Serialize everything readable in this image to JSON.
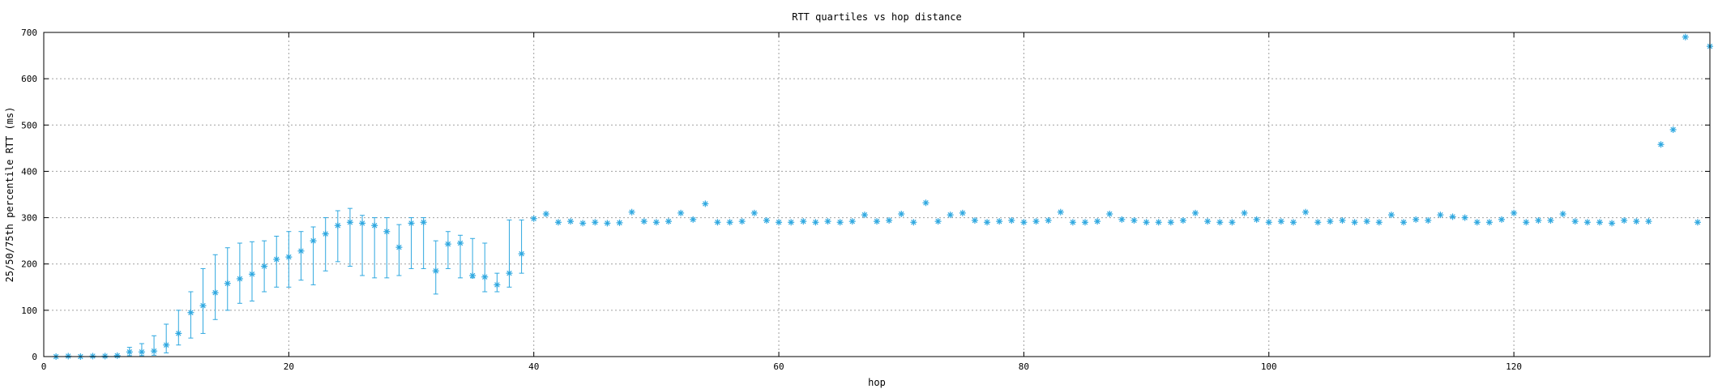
{
  "chart_data": {
    "type": "scatter",
    "title": "RTT quartiles vs hop distance",
    "xlabel": "hop",
    "ylabel": "25/50/75th percentile RTT (ms)",
    "xlim": [
      0,
      136
    ],
    "ylim": [
      0,
      700
    ],
    "x_ticks": [
      0,
      20,
      40,
      60,
      80,
      100,
      120
    ],
    "y_ticks": [
      0,
      100,
      200,
      300,
      400,
      500,
      600,
      700
    ],
    "grid": true,
    "legend": "none",
    "marker": "asterisk",
    "color": "#2fa8e0",
    "series": [
      {
        "points": [
          {
            "x": 1,
            "y": 0
          },
          {
            "x": 2,
            "y": 1
          },
          {
            "x": 3,
            "y": 0
          },
          {
            "x": 4,
            "y": 1
          },
          {
            "x": 5,
            "y": 1
          },
          {
            "x": 6,
            "y": 2
          },
          {
            "x": 7,
            "y": 10,
            "low": 2,
            "high": 20
          },
          {
            "x": 8,
            "y": 10,
            "low": 2,
            "high": 28
          },
          {
            "x": 9,
            "y": 12,
            "low": 3,
            "high": 45
          },
          {
            "x": 10,
            "y": 25,
            "low": 8,
            "high": 70
          },
          {
            "x": 11,
            "y": 50,
            "low": 25,
            "high": 100
          },
          {
            "x": 12,
            "y": 95,
            "low": 40,
            "high": 140
          },
          {
            "x": 13,
            "y": 110,
            "low": 50,
            "high": 190
          },
          {
            "x": 14,
            "y": 138,
            "low": 80,
            "high": 220
          },
          {
            "x": 15,
            "y": 158,
            "low": 100,
            "high": 235
          },
          {
            "x": 16,
            "y": 168,
            "low": 115,
            "high": 245
          },
          {
            "x": 17,
            "y": 178,
            "low": 120,
            "high": 248
          },
          {
            "x": 18,
            "y": 195,
            "low": 140,
            "high": 250
          },
          {
            "x": 19,
            "y": 210,
            "low": 150,
            "high": 260
          },
          {
            "x": 20,
            "y": 215,
            "low": 150,
            "high": 270
          },
          {
            "x": 21,
            "y": 228,
            "low": 165,
            "high": 270
          },
          {
            "x": 22,
            "y": 250,
            "low": 155,
            "high": 280
          },
          {
            "x": 23,
            "y": 265,
            "low": 185,
            "high": 300
          },
          {
            "x": 24,
            "y": 283,
            "low": 205,
            "high": 315
          },
          {
            "x": 25,
            "y": 290,
            "low": 195,
            "high": 320
          },
          {
            "x": 26,
            "y": 288,
            "low": 175,
            "high": 305
          },
          {
            "x": 27,
            "y": 283,
            "low": 170,
            "high": 300
          },
          {
            "x": 28,
            "y": 270,
            "low": 170,
            "high": 300
          },
          {
            "x": 29,
            "y": 236,
            "low": 175,
            "high": 285
          },
          {
            "x": 30,
            "y": 288,
            "low": 190,
            "high": 300
          },
          {
            "x": 31,
            "y": 290,
            "low": 190,
            "high": 300
          },
          {
            "x": 32,
            "y": 185,
            "low": 135,
            "high": 250
          },
          {
            "x": 33,
            "y": 243,
            "low": 190,
            "high": 270
          },
          {
            "x": 34,
            "y": 245,
            "low": 170,
            "high": 262
          },
          {
            "x": 35,
            "y": 175,
            "low": 170,
            "high": 255
          },
          {
            "x": 36,
            "y": 172,
            "low": 140,
            "high": 245
          },
          {
            "x": 37,
            "y": 155,
            "low": 140,
            "high": 180
          },
          {
            "x": 38,
            "y": 180,
            "low": 150,
            "high": 295
          },
          {
            "x": 39,
            "y": 222,
            "low": 180,
            "high": 295
          },
          {
            "x": 40,
            "y": 298
          },
          {
            "x": 41,
            "y": 308
          },
          {
            "x": 42,
            "y": 290
          },
          {
            "x": 43,
            "y": 292
          },
          {
            "x": 44,
            "y": 288
          },
          {
            "x": 45,
            "y": 290
          },
          {
            "x": 46,
            "y": 288
          },
          {
            "x": 47,
            "y": 289
          },
          {
            "x": 48,
            "y": 312
          },
          {
            "x": 49,
            "y": 292
          },
          {
            "x": 50,
            "y": 290
          },
          {
            "x": 51,
            "y": 292
          },
          {
            "x": 52,
            "y": 310
          },
          {
            "x": 53,
            "y": 296
          },
          {
            "x": 54,
            "y": 330
          },
          {
            "x": 55,
            "y": 290
          },
          {
            "x": 56,
            "y": 290
          },
          {
            "x": 57,
            "y": 292
          },
          {
            "x": 58,
            "y": 310
          },
          {
            "x": 59,
            "y": 294
          },
          {
            "x": 60,
            "y": 290
          },
          {
            "x": 61,
            "y": 290
          },
          {
            "x": 62,
            "y": 292
          },
          {
            "x": 63,
            "y": 290
          },
          {
            "x": 64,
            "y": 292
          },
          {
            "x": 65,
            "y": 290
          },
          {
            "x": 66,
            "y": 292
          },
          {
            "x": 67,
            "y": 306
          },
          {
            "x": 68,
            "y": 292
          },
          {
            "x": 69,
            "y": 294
          },
          {
            "x": 70,
            "y": 308
          },
          {
            "x": 71,
            "y": 290
          },
          {
            "x": 72,
            "y": 332
          },
          {
            "x": 73,
            "y": 292
          },
          {
            "x": 74,
            "y": 306
          },
          {
            "x": 75,
            "y": 310
          },
          {
            "x": 76,
            "y": 294
          },
          {
            "x": 77,
            "y": 290
          },
          {
            "x": 78,
            "y": 292
          },
          {
            "x": 79,
            "y": 294
          },
          {
            "x": 80,
            "y": 290
          },
          {
            "x": 81,
            "y": 292
          },
          {
            "x": 82,
            "y": 294
          },
          {
            "x": 83,
            "y": 312
          },
          {
            "x": 84,
            "y": 290
          },
          {
            "x": 85,
            "y": 290
          },
          {
            "x": 86,
            "y": 292
          },
          {
            "x": 87,
            "y": 308
          },
          {
            "x": 88,
            "y": 296
          },
          {
            "x": 89,
            "y": 294
          },
          {
            "x": 90,
            "y": 290
          },
          {
            "x": 91,
            "y": 290
          },
          {
            "x": 92,
            "y": 290
          },
          {
            "x": 93,
            "y": 294
          },
          {
            "x": 94,
            "y": 310
          },
          {
            "x": 95,
            "y": 292
          },
          {
            "x": 96,
            "y": 290
          },
          {
            "x": 97,
            "y": 290
          },
          {
            "x": 98,
            "y": 310
          },
          {
            "x": 99,
            "y": 296
          },
          {
            "x": 100,
            "y": 290
          },
          {
            "x": 101,
            "y": 292
          },
          {
            "x": 102,
            "y": 290
          },
          {
            "x": 103,
            "y": 312
          },
          {
            "x": 104,
            "y": 290
          },
          {
            "x": 105,
            "y": 292
          },
          {
            "x": 106,
            "y": 294
          },
          {
            "x": 107,
            "y": 290
          },
          {
            "x": 108,
            "y": 292
          },
          {
            "x": 109,
            "y": 290
          },
          {
            "x": 110,
            "y": 306
          },
          {
            "x": 111,
            "y": 290
          },
          {
            "x": 112,
            "y": 296
          },
          {
            "x": 113,
            "y": 294
          },
          {
            "x": 114,
            "y": 306
          },
          {
            "x": 115,
            "y": 302
          },
          {
            "x": 116,
            "y": 300
          },
          {
            "x": 117,
            "y": 290
          },
          {
            "x": 118,
            "y": 290
          },
          {
            "x": 119,
            "y": 296
          },
          {
            "x": 120,
            "y": 310
          },
          {
            "x": 121,
            "y": 290
          },
          {
            "x": 122,
            "y": 294
          },
          {
            "x": 123,
            "y": 294
          },
          {
            "x": 124,
            "y": 308
          },
          {
            "x": 125,
            "y": 292
          },
          {
            "x": 126,
            "y": 290
          },
          {
            "x": 127,
            "y": 290
          },
          {
            "x": 128,
            "y": 288
          },
          {
            "x": 129,
            "y": 294
          },
          {
            "x": 130,
            "y": 292
          },
          {
            "x": 131,
            "y": 292
          },
          {
            "x": 132,
            "y": 458
          },
          {
            "x": 133,
            "y": 490
          },
          {
            "x": 134,
            "y": 690
          },
          {
            "x": 135,
            "y": 290
          },
          {
            "x": 136,
            "y": 670
          }
        ]
      }
    ]
  }
}
